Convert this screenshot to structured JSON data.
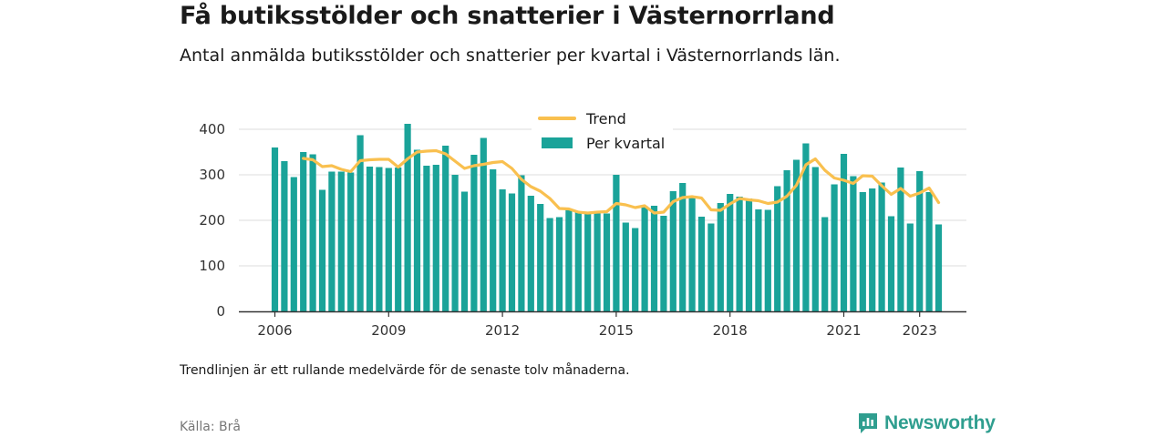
{
  "header": {
    "title": "Få butiksstölder och snatterier i Västernorrland",
    "subtitle": "Antal anmälda butiksstölder och snatterier per kvartal i Västernorrlands län."
  },
  "footer": {
    "note": "Trendlinjen är ett rullande medelvärde för de senaste tolv månaderna.",
    "source": "Källa: Brå",
    "brand": "Newsworthy"
  },
  "colors": {
    "bar": "#1aa399",
    "trend": "#f9c04f",
    "grid": "#dddddd",
    "axis": "#333333",
    "brand": "#2f9e8f"
  },
  "icons": {
    "brand_logo": "newsworthy-logo-icon"
  },
  "chart_data": {
    "type": "bar",
    "title": "Få butiksstölder och snatterier i Västernorrland",
    "subtitle": "Antal anmälda butiksstölder och snatterier per kvartal i Västernorrlands län.",
    "xlabel": "",
    "ylabel": "",
    "ylim": [
      0,
      400
    ],
    "yticks": [
      0,
      100,
      200,
      300,
      400
    ],
    "xticks": [
      "2006",
      "2009",
      "2012",
      "2015",
      "2018",
      "2021",
      "2023"
    ],
    "grid": true,
    "legend": "top-center",
    "series": [
      {
        "name": "Per kvartal",
        "type": "bar",
        "x": [
          "2006Q1",
          "2006Q2",
          "2006Q3",
          "2006Q4",
          "2007Q1",
          "2007Q2",
          "2007Q3",
          "2007Q4",
          "2008Q1",
          "2008Q2",
          "2008Q3",
          "2008Q4",
          "2009Q1",
          "2009Q2",
          "2009Q3",
          "2009Q4",
          "2010Q1",
          "2010Q2",
          "2010Q3",
          "2010Q4",
          "2011Q1",
          "2011Q2",
          "2011Q3",
          "2011Q4",
          "2012Q1",
          "2012Q2",
          "2012Q3",
          "2012Q4",
          "2013Q1",
          "2013Q2",
          "2013Q3",
          "2013Q4",
          "2014Q1",
          "2014Q2",
          "2014Q3",
          "2014Q4",
          "2015Q1",
          "2015Q2",
          "2015Q3",
          "2015Q4",
          "2016Q1",
          "2016Q2",
          "2016Q3",
          "2016Q4",
          "2017Q1",
          "2017Q2",
          "2017Q3",
          "2017Q4",
          "2018Q1",
          "2018Q2",
          "2018Q3",
          "2018Q4",
          "2019Q1",
          "2019Q2",
          "2019Q3",
          "2019Q4",
          "2020Q1",
          "2020Q2",
          "2020Q3",
          "2020Q4",
          "2021Q1",
          "2021Q2",
          "2021Q3",
          "2021Q4",
          "2022Q1",
          "2022Q2",
          "2022Q3",
          "2022Q4",
          "2023Q1",
          "2023Q2",
          "2023Q3"
        ],
        "values": [
          360,
          330,
          295,
          350,
          345,
          267,
          307,
          307,
          305,
          387,
          318,
          317,
          315,
          316,
          412,
          355,
          320,
          322,
          364,
          300,
          263,
          344,
          381,
          312,
          268,
          259,
          299,
          254,
          236,
          205,
          207,
          226,
          220,
          215,
          215,
          215,
          300,
          195,
          183,
          231,
          232,
          210,
          264,
          282,
          249,
          208,
          193,
          238,
          258,
          252,
          248,
          224,
          223,
          275,
          310,
          333,
          369,
          317,
          207,
          279,
          346,
          297,
          262,
          270,
          283,
          209,
          316,
          193,
          308,
          262,
          191
        ]
      },
      {
        "name": "Trend",
        "type": "line",
        "x": [
          "2006Q4",
          "2007Q1",
          "2007Q2",
          "2007Q3",
          "2007Q4",
          "2008Q1",
          "2008Q2",
          "2008Q3",
          "2008Q4",
          "2009Q1",
          "2009Q2",
          "2009Q3",
          "2009Q4",
          "2010Q1",
          "2010Q2",
          "2010Q3",
          "2010Q4",
          "2011Q1",
          "2011Q2",
          "2011Q3",
          "2011Q4",
          "2012Q1",
          "2012Q2",
          "2012Q3",
          "2012Q4",
          "2013Q1",
          "2013Q2",
          "2013Q3",
          "2013Q4",
          "2014Q1",
          "2014Q2",
          "2014Q3",
          "2014Q4",
          "2015Q1",
          "2015Q2",
          "2015Q3",
          "2015Q4",
          "2016Q1",
          "2016Q2",
          "2016Q3",
          "2016Q4",
          "2017Q1",
          "2017Q2",
          "2017Q3",
          "2017Q4",
          "2018Q1",
          "2018Q2",
          "2018Q3",
          "2018Q4",
          "2019Q1",
          "2019Q2",
          "2019Q3",
          "2019Q4",
          "2020Q1",
          "2020Q2",
          "2020Q3",
          "2020Q4",
          "2021Q1",
          "2021Q2",
          "2021Q3",
          "2021Q4",
          "2022Q1",
          "2022Q2",
          "2022Q3",
          "2022Q4",
          "2023Q1",
          "2023Q2",
          "2023Q3"
        ],
        "values": [
          336,
          333,
          318,
          320,
          312,
          307,
          331,
          333,
          334,
          334,
          317,
          335,
          350,
          352,
          353,
          346,
          330,
          314,
          320,
          323,
          327,
          329,
          314,
          290,
          274,
          264,
          248,
          226,
          225,
          218,
          216,
          218,
          219,
          237,
          234,
          228,
          232,
          216,
          218,
          241,
          250,
          252,
          249,
          223,
          222,
          236,
          248,
          245,
          243,
          237,
          240,
          253,
          277,
          322,
          335,
          310,
          293,
          288,
          281,
          298,
          297,
          276,
          257,
          270,
          253,
          260,
          271,
          239
        ]
      }
    ]
  }
}
